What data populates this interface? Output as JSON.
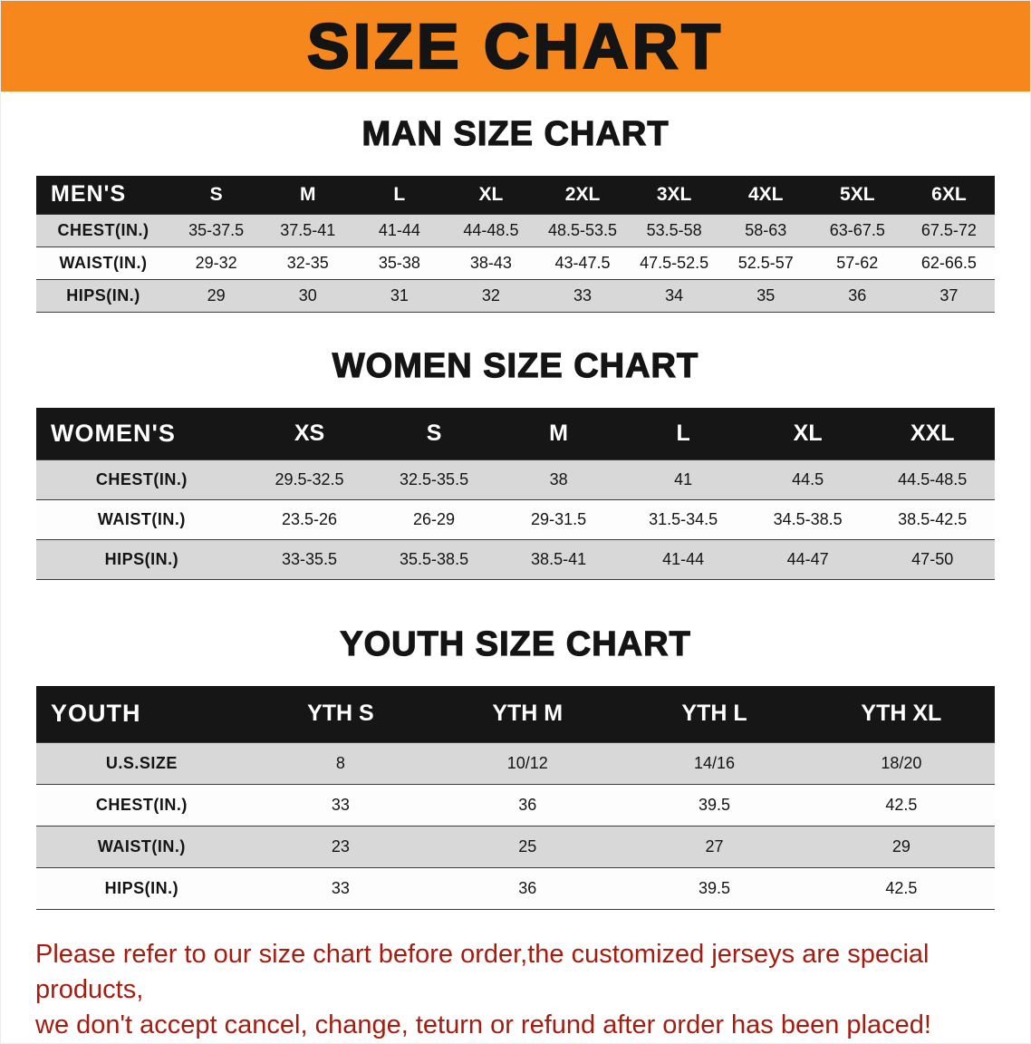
{
  "banner": {
    "title": "SIZE CHART",
    "bg_color": "#f6871d"
  },
  "colors": {
    "banner_orange": "#f6871d",
    "table_header_black": "#161616",
    "row_stripe_gray": "#d8d8d8",
    "disclaimer_red": "#a51d11"
  },
  "sections": [
    {
      "id": "men",
      "heading": "MAN SIZE CHART",
      "table": {
        "header": [
          "MEN'S",
          "S",
          "M",
          "L",
          "XL",
          "2XL",
          "3XL",
          "4XL",
          "5XL",
          "6XL"
        ],
        "rows": [
          [
            "CHEST(IN.)",
            "35-37.5",
            "37.5-41",
            "41-44",
            "44-48.5",
            "48.5-53.5",
            "53.5-58",
            "58-63",
            "63-67.5",
            "67.5-72"
          ],
          [
            "WAIST(IN.)",
            "29-32",
            "32-35",
            "35-38",
            "38-43",
            "43-47.5",
            "47.5-52.5",
            "52.5-57",
            "57-62",
            "62-66.5"
          ],
          [
            "HIPS(IN.)",
            "29",
            "30",
            "31",
            "32",
            "33",
            "34",
            "35",
            "36",
            "37"
          ]
        ]
      }
    },
    {
      "id": "women",
      "heading": "WOMEN SIZE CHART",
      "table": {
        "header": [
          "WOMEN'S",
          "XS",
          "S",
          "M",
          "L",
          "XL",
          "XXL"
        ],
        "rows": [
          [
            "CHEST(IN.)",
            "29.5-32.5",
            "32.5-35.5",
            "38",
            "41",
            "44.5",
            "44.5-48.5"
          ],
          [
            "WAIST(IN.)",
            "23.5-26",
            "26-29",
            "29-31.5",
            "31.5-34.5",
            "34.5-38.5",
            "38.5-42.5"
          ],
          [
            "HIPS(IN.)",
            "33-35.5",
            "35.5-38.5",
            "38.5-41",
            "41-44",
            "44-47",
            "47-50"
          ]
        ]
      }
    },
    {
      "id": "youth",
      "heading": "YOUTH SIZE CHART",
      "table": {
        "header": [
          "YOUTH",
          "YTH S",
          "YTH M",
          "YTH L",
          "YTH XL"
        ],
        "rows": [
          [
            "U.S.SIZE",
            "8",
            "10/12",
            "14/16",
            "18/20"
          ],
          [
            "CHEST(IN.)",
            "33",
            "36",
            "39.5",
            "42.5"
          ],
          [
            "WAIST(IN.)",
            "23",
            "25",
            "27",
            "29"
          ],
          [
            "HIPS(IN.)",
            "33",
            "36",
            "39.5",
            "42.5"
          ]
        ]
      }
    }
  ],
  "disclaimer": {
    "line1": "Please refer to our size chart before order,the customized jerseys are special products,",
    "line2": "we don't accept cancel, change, teturn or refund after order has been placed!"
  }
}
